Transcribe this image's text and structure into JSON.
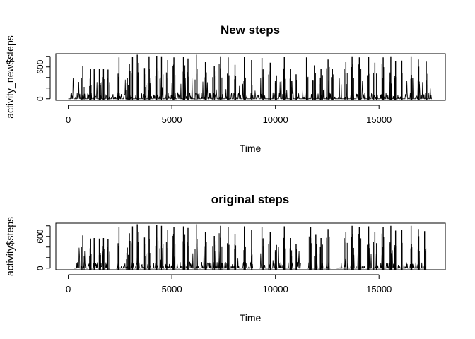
{
  "chart_data": [
    {
      "type": "line",
      "title": "New steps",
      "xlabel": "Time",
      "ylabel": "activity_new$steps",
      "xlim": [
        -600,
        18200
      ],
      "ylim": [
        -30,
        850
      ],
      "xticks": [
        0,
        5000,
        10000,
        15000
      ],
      "xtick_labels": [
        "0",
        "5000",
        "10000",
        "15000"
      ],
      "yticks": [
        0,
        200,
        400,
        600,
        800
      ],
      "ytick_labels": [
        "0",
        "",
        "",
        "600",
        ""
      ],
      "grid": false,
      "n_points": 17568,
      "gaps": [],
      "bursts": [
        {
          "x": 700,
          "y": 620
        },
        {
          "x": 1080,
          "y": 560
        },
        {
          "x": 1250,
          "y": 570
        },
        {
          "x": 1500,
          "y": 560
        },
        {
          "x": 1700,
          "y": 570
        },
        {
          "x": 1920,
          "y": 550
        },
        {
          "x": 2450,
          "y": 780
        },
        {
          "x": 2850,
          "y": 390
        },
        {
          "x": 2950,
          "y": 660
        },
        {
          "x": 3100,
          "y": 790
        },
        {
          "x": 3330,
          "y": 830
        },
        {
          "x": 3680,
          "y": 580
        },
        {
          "x": 3900,
          "y": 800
        },
        {
          "x": 4270,
          "y": 810
        },
        {
          "x": 4500,
          "y": 800
        },
        {
          "x": 4800,
          "y": 730
        },
        {
          "x": 5100,
          "y": 780
        },
        {
          "x": 5560,
          "y": 790
        },
        {
          "x": 5780,
          "y": 760
        },
        {
          "x": 6200,
          "y": 830
        },
        {
          "x": 6620,
          "y": 690
        },
        {
          "x": 7050,
          "y": 610
        },
        {
          "x": 7350,
          "y": 800
        },
        {
          "x": 7720,
          "y": 780
        },
        {
          "x": 8050,
          "y": 640
        },
        {
          "x": 8500,
          "y": 790
        },
        {
          "x": 8850,
          "y": 730
        },
        {
          "x": 9350,
          "y": 770
        },
        {
          "x": 9750,
          "y": 680
        },
        {
          "x": 10050,
          "y": 440
        },
        {
          "x": 10430,
          "y": 790
        },
        {
          "x": 10720,
          "y": 570
        },
        {
          "x": 11000,
          "y": 460
        },
        {
          "x": 11500,
          "y": 780
        },
        {
          "x": 11880,
          "y": 630
        },
        {
          "x": 12200,
          "y": 570
        },
        {
          "x": 12540,
          "y": 740
        },
        {
          "x": 12750,
          "y": 560
        },
        {
          "x": 13400,
          "y": 690
        },
        {
          "x": 13700,
          "y": 800
        },
        {
          "x": 14050,
          "y": 780
        },
        {
          "x": 14500,
          "y": 790
        },
        {
          "x": 14800,
          "y": 680
        },
        {
          "x": 15200,
          "y": 780
        },
        {
          "x": 15570,
          "y": 800
        },
        {
          "x": 15800,
          "y": 710
        },
        {
          "x": 16100,
          "y": 720
        },
        {
          "x": 16550,
          "y": 800
        },
        {
          "x": 16900,
          "y": 740
        },
        {
          "x": 17280,
          "y": 700
        }
      ]
    },
    {
      "type": "line",
      "title": "original steps",
      "xlabel": "Time",
      "ylabel": "activity$steps",
      "xlim": [
        -600,
        18200
      ],
      "ylim": [
        -30,
        850
      ],
      "xticks": [
        0,
        5000,
        10000,
        15000
      ],
      "xtick_labels": [
        "0",
        "5000",
        "10000",
        "15000"
      ],
      "yticks": [
        0,
        200,
        400,
        600,
        800
      ],
      "ytick_labels": [
        "0",
        "",
        "",
        "600",
        ""
      ],
      "grid": false,
      "n_points": 17568,
      "gaps": [
        [
          0,
          288
        ],
        [
          2016,
          2304
        ],
        [
          8928,
          9216
        ],
        [
          11232,
          11520
        ],
        [
          12672,
          12960
        ],
        [
          17280,
          17568
        ]
      ],
      "bursts": [
        {
          "x": 700,
          "y": 620
        },
        {
          "x": 1080,
          "y": 560
        },
        {
          "x": 1250,
          "y": 570
        },
        {
          "x": 1500,
          "y": 560
        },
        {
          "x": 1700,
          "y": 570
        },
        {
          "x": 1920,
          "y": 550
        },
        {
          "x": 2450,
          "y": 780
        },
        {
          "x": 2850,
          "y": 390
        },
        {
          "x": 2950,
          "y": 660
        },
        {
          "x": 3100,
          "y": 790
        },
        {
          "x": 3330,
          "y": 830
        },
        {
          "x": 3680,
          "y": 580
        },
        {
          "x": 3900,
          "y": 800
        },
        {
          "x": 4270,
          "y": 810
        },
        {
          "x": 4500,
          "y": 800
        },
        {
          "x": 4800,
          "y": 730
        },
        {
          "x": 5100,
          "y": 780
        },
        {
          "x": 5560,
          "y": 790
        },
        {
          "x": 5780,
          "y": 760
        },
        {
          "x": 6200,
          "y": 830
        },
        {
          "x": 6620,
          "y": 690
        },
        {
          "x": 7050,
          "y": 610
        },
        {
          "x": 7350,
          "y": 800
        },
        {
          "x": 7720,
          "y": 780
        },
        {
          "x": 8050,
          "y": 640
        },
        {
          "x": 8500,
          "y": 790
        },
        {
          "x": 8850,
          "y": 730
        },
        {
          "x": 9350,
          "y": 770
        },
        {
          "x": 9750,
          "y": 680
        },
        {
          "x": 10050,
          "y": 440
        },
        {
          "x": 10430,
          "y": 790
        },
        {
          "x": 10720,
          "y": 570
        },
        {
          "x": 11000,
          "y": 460
        },
        {
          "x": 11700,
          "y": 780
        },
        {
          "x": 11950,
          "y": 630
        },
        {
          "x": 12200,
          "y": 570
        },
        {
          "x": 12540,
          "y": 740
        },
        {
          "x": 13400,
          "y": 690
        },
        {
          "x": 13700,
          "y": 800
        },
        {
          "x": 14050,
          "y": 780
        },
        {
          "x": 14500,
          "y": 790
        },
        {
          "x": 14800,
          "y": 680
        },
        {
          "x": 15200,
          "y": 780
        },
        {
          "x": 15570,
          "y": 800
        },
        {
          "x": 15800,
          "y": 710
        },
        {
          "x": 16100,
          "y": 720
        },
        {
          "x": 16550,
          "y": 800
        },
        {
          "x": 16900,
          "y": 740
        },
        {
          "x": 17200,
          "y": 700
        }
      ]
    }
  ]
}
